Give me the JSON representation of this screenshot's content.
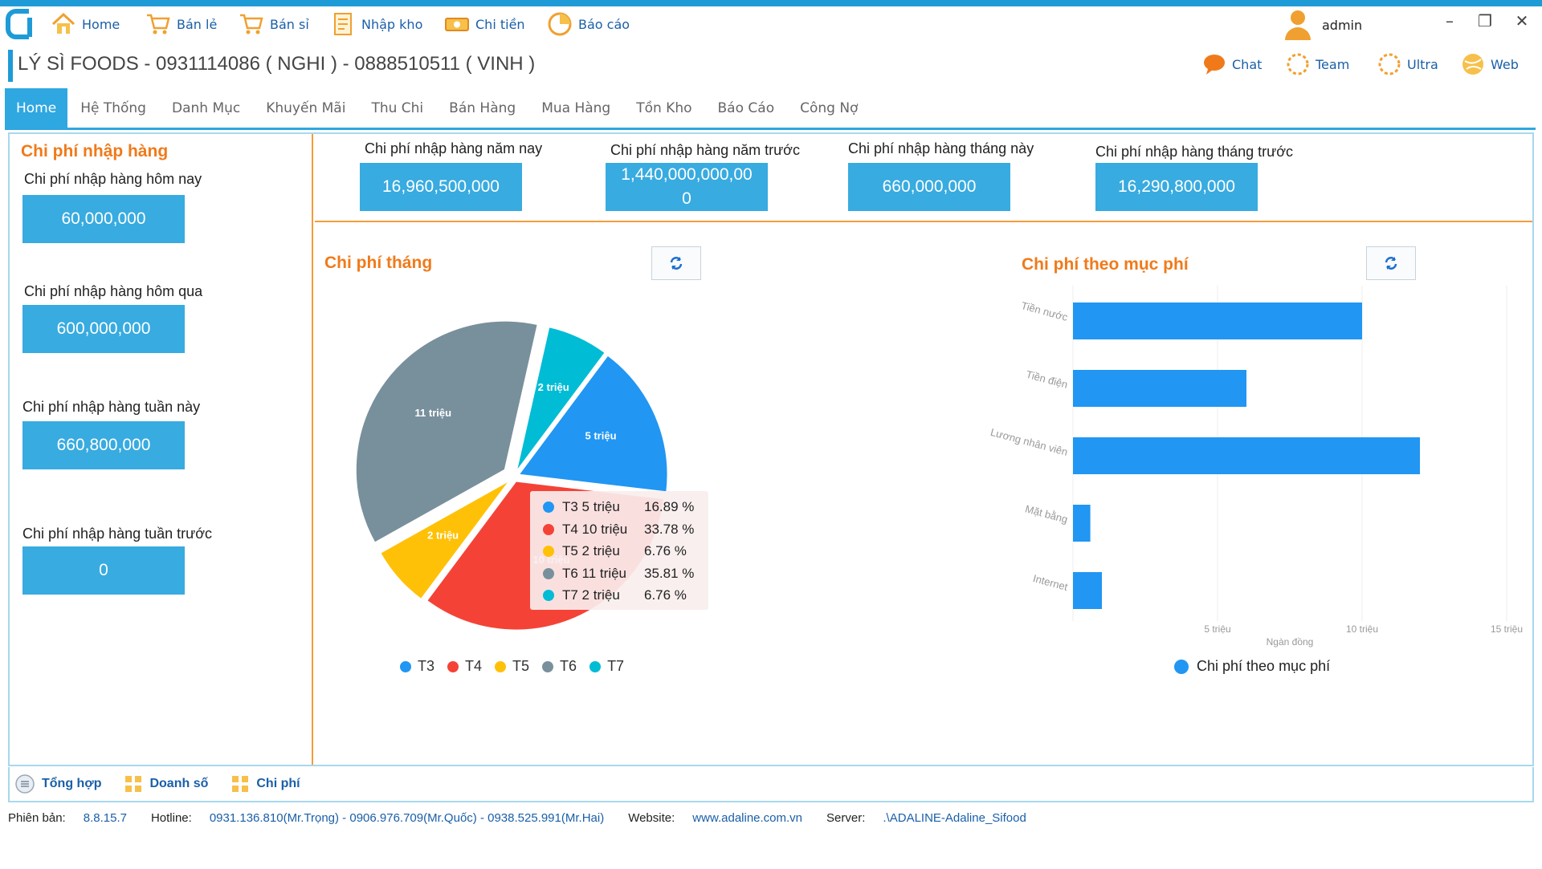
{
  "menu": {
    "items": [
      {
        "label": "Home",
        "icon": "house-icon"
      },
      {
        "label": "Bán lẻ",
        "icon": "cart-icon"
      },
      {
        "label": "Bán sỉ",
        "icon": "cart-icon"
      },
      {
        "label": "Nhập kho",
        "icon": "document-icon"
      },
      {
        "label": "Chi tiền",
        "icon": "money-icon"
      },
      {
        "label": "Báo cáo",
        "icon": "report-icon"
      }
    ],
    "user": "admin"
  },
  "title": "LÝ SÌ FOODS - 0931114086 ( NGHI ) - 0888510511 ( VINH )",
  "quick_links": [
    {
      "label": "Chat",
      "icon": "chat-icon"
    },
    {
      "label": "Team",
      "icon": "team-icon"
    },
    {
      "label": "Ultra",
      "icon": "ultra-icon"
    },
    {
      "label": "Web",
      "icon": "globe-icon"
    }
  ],
  "tabs": [
    "Home",
    "Hệ Thống",
    "Danh Mục",
    "Khuyến Mãi",
    "Thu Chi",
    "Bán Hàng",
    "Mua Hàng",
    "Tồn Kho",
    "Báo Cáo",
    "Công Nợ"
  ],
  "left": {
    "title": "Chi phí nhập hàng",
    "stats": [
      {
        "label": "Chi phí nhập hàng hôm nay",
        "value": "60,000,000"
      },
      {
        "label": "Chi phí nhập hàng hôm qua",
        "value": "600,000,000"
      },
      {
        "label": "Chi phí nhập hàng tuần này",
        "value": "660,800,000"
      },
      {
        "label": "Chi phí nhập hàng tuần trước",
        "value": "0"
      }
    ]
  },
  "top": {
    "stats": [
      {
        "label": "Chi phí nhập hàng năm nay",
        "value": "16,960,500,000"
      },
      {
        "label": "Chi phí nhập hàng năm trước",
        "value": "1,440,000,000,00",
        "value2": "0"
      },
      {
        "label": "Chi phí nhập hàng tháng này",
        "value": "660,000,000"
      },
      {
        "label": "Chi phí nhập hàng tháng trước",
        "value": "16,290,800,000"
      }
    ]
  },
  "pie_title": "Chi phí tháng",
  "bar_title": "Chi phí theo mục phí",
  "chart_data": [
    {
      "type": "pie",
      "title": "Chi phí tháng",
      "categories": [
        "T3",
        "T4",
        "T5",
        "T6",
        "T7"
      ],
      "values": [
        5,
        10,
        2,
        11,
        2
      ],
      "labels": [
        "5 triệu",
        "10 triệu",
        "2 triệu",
        "11 triệu",
        "2 triệu"
      ],
      "percents": [
        "16.89 %",
        "33.78 %",
        "6.76 %",
        "35.81 %",
        "6.76 %"
      ],
      "colors": [
        "#2196f3",
        "#f44336",
        "#ffc107",
        "#78909c",
        "#00bcd4"
      ],
      "legend": "bottom"
    },
    {
      "type": "bar",
      "orientation": "horizontal",
      "title": "Chi phí theo mục phí",
      "categories": [
        "Tiền nước",
        "Tiền điện",
        "Lương nhân viên",
        "Mặt bằng",
        "Internet"
      ],
      "series": [
        {
          "name": "Chi phí theo mục phí",
          "values": [
            10,
            6,
            12,
            0.6,
            1
          ]
        }
      ],
      "xlabel": "Ngàn đồng",
      "xticks": [
        "5 triệu",
        "10 triệu",
        "15 triệu"
      ],
      "xlim": [
        0,
        15
      ],
      "color": "#2196f3",
      "legend": "bottom"
    }
  ],
  "bottom_tabs": [
    {
      "label": "Tổng hợp",
      "icon": "list-icon"
    },
    {
      "label": "Doanh số",
      "icon": "grid-icon"
    },
    {
      "label": "Chi phí",
      "icon": "grid-icon"
    }
  ],
  "status": {
    "version_key": "Phiên bản:",
    "version": "8.8.15.7",
    "hotline_key": "Hotline:",
    "hotline": "0931.136.810(Mr.Trọng) - 0906.976.709(Mr.Quốc) - 0938.525.991(Mr.Hai)",
    "website_key": "Website:",
    "website": "www.adaline.com.vn",
    "server_key": "Server:",
    "server": ".\\ADALINE-Adaline_Sifood"
  }
}
